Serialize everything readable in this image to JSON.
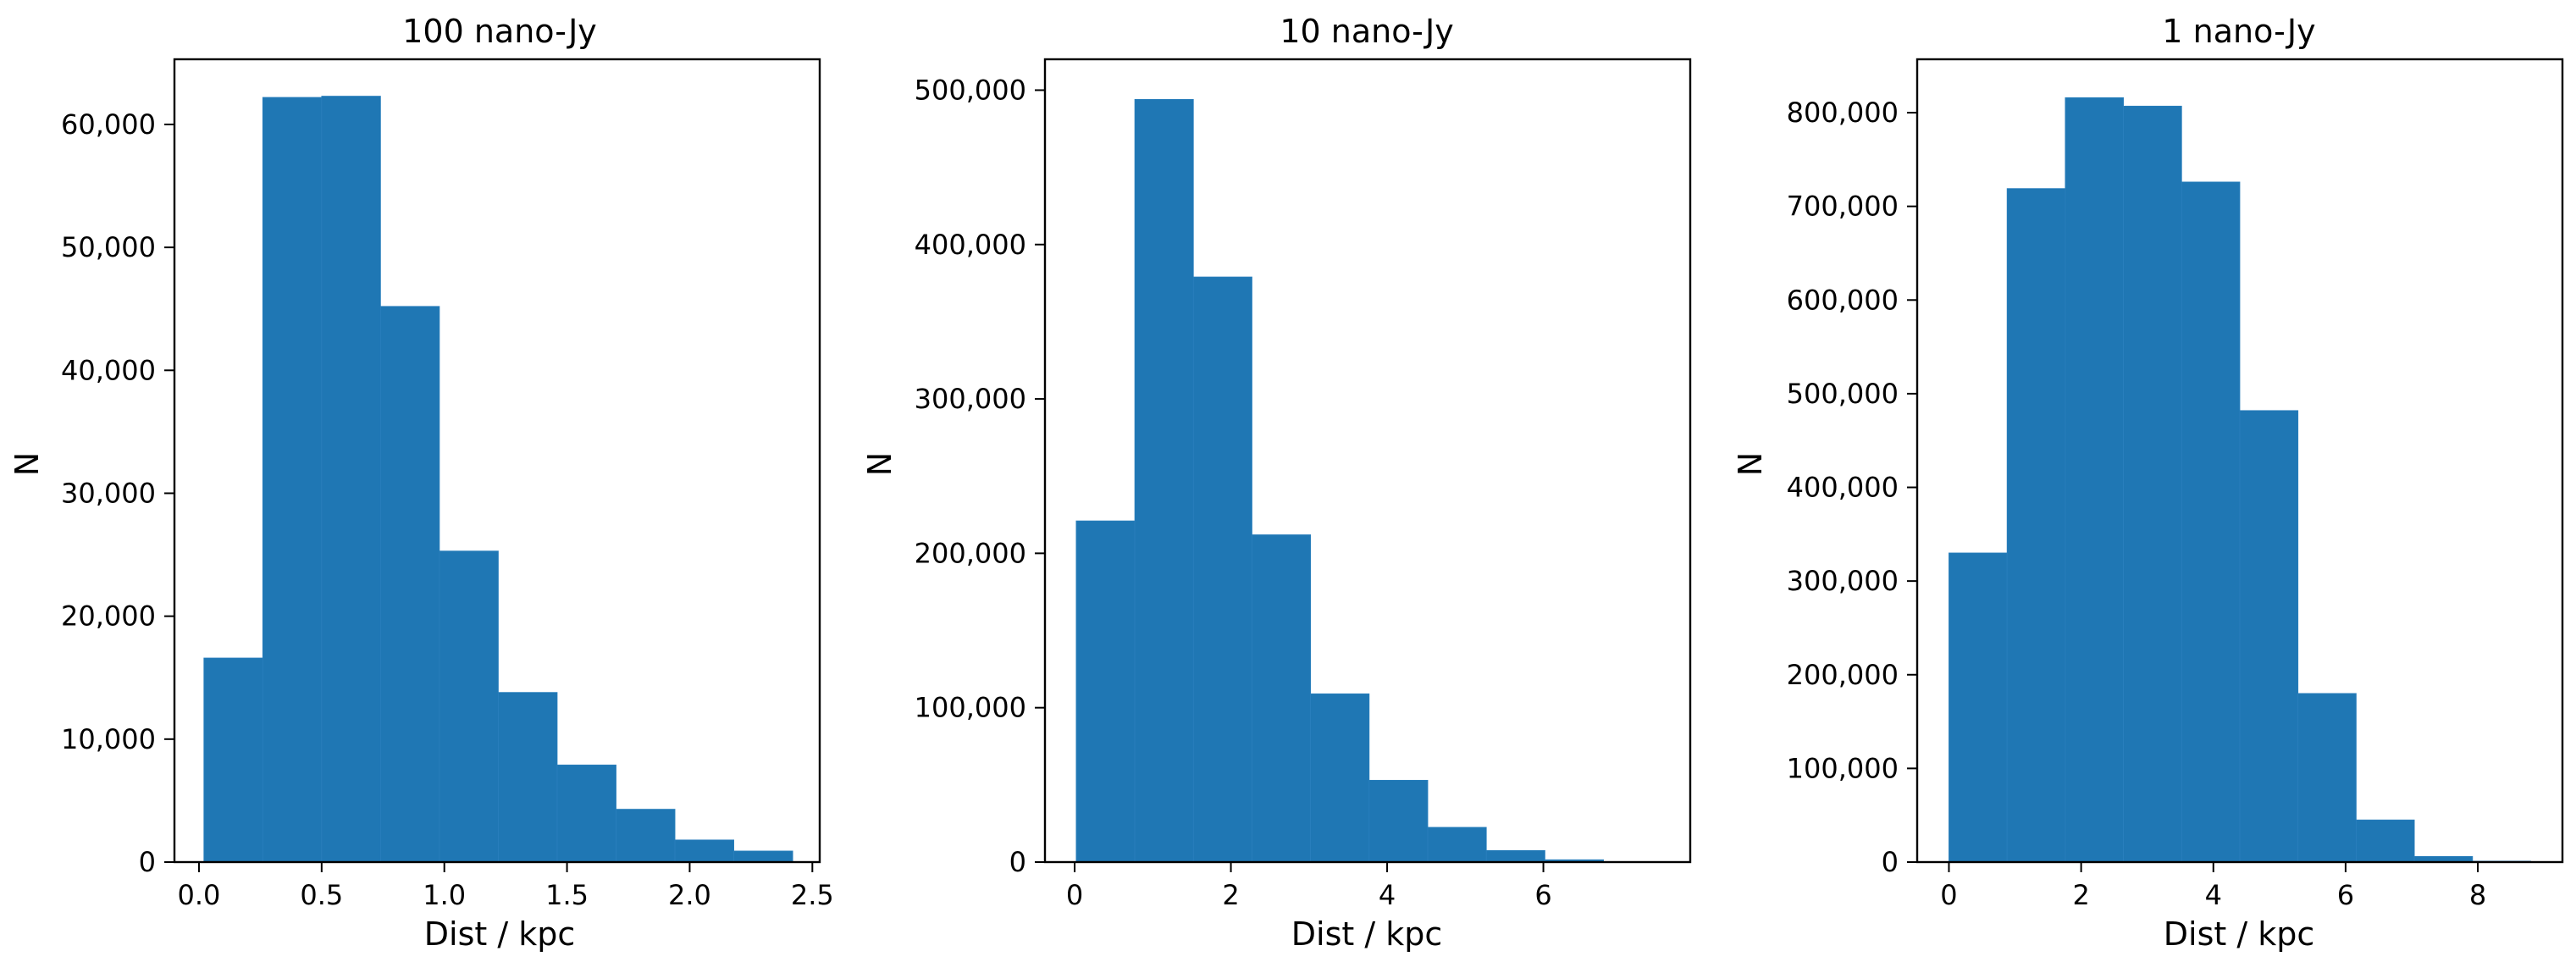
{
  "figure": {
    "background": "#ffffff",
    "bar_color": "#1f77b4"
  },
  "chart_data": [
    {
      "type": "bar",
      "title": "100 nano-Jy",
      "xlabel": "Dist / kpc",
      "ylabel": "N",
      "xlim": [
        -0.1,
        2.53
      ],
      "ylim": [
        0,
        65300
      ],
      "bin_edges": [
        0.02,
        0.26,
        0.5,
        0.74,
        0.98,
        1.22,
        1.46,
        1.7,
        1.94,
        2.18,
        2.42
      ],
      "values": [
        16600,
        62200,
        62300,
        45200,
        25300,
        13800,
        7900,
        4300,
        1800,
        900
      ],
      "xticks": [
        0.0,
        0.5,
        1.0,
        1.5,
        2.0,
        2.5
      ],
      "xtick_labels": [
        "0.0",
        "0.5",
        "1.0",
        "1.5",
        "2.0",
        "2.5"
      ],
      "yticks": [
        0,
        10000,
        20000,
        30000,
        40000,
        50000,
        60000
      ],
      "ytick_labels": [
        "0",
        "10,000",
        "20,000",
        "30,000",
        "40,000",
        "50,000",
        "60,000"
      ],
      "grid": false,
      "legend": "none"
    },
    {
      "type": "bar",
      "title": "10 nano-Jy",
      "xlabel": "Dist / kpc",
      "ylabel": "N",
      "xlim": [
        -0.38,
        7.88
      ],
      "ylim": [
        0,
        520000
      ],
      "bin_edges": [
        0.02,
        0.77,
        1.52,
        2.27,
        3.02,
        3.77,
        4.52,
        5.27,
        6.02,
        6.77,
        7.52
      ],
      "values": [
        221000,
        494000,
        379000,
        212000,
        109000,
        53000,
        22500,
        7500,
        1500,
        300
      ],
      "xticks": [
        0,
        2,
        4,
        6
      ],
      "xtick_labels": [
        "0",
        "2",
        "4",
        "6"
      ],
      "yticks": [
        0,
        100000,
        200000,
        300000,
        400000,
        500000
      ],
      "ytick_labels": [
        "0",
        "100,000",
        "200,000",
        "300,000",
        "400,000",
        "500,000"
      ],
      "grid": false,
      "legend": "none"
    },
    {
      "type": "bar",
      "title": "1 nano-Jy",
      "xlabel": "Dist / kpc",
      "ylabel": "N",
      "xlim": [
        -0.48,
        9.28
      ],
      "ylim": [
        0,
        857000
      ],
      "bin_edges": [
        0.0,
        0.88,
        1.76,
        2.64,
        3.52,
        4.4,
        5.28,
        6.16,
        7.04,
        7.92,
        8.8
      ],
      "values": [
        330000,
        719000,
        816000,
        807000,
        726000,
        482000,
        180000,
        45000,
        6000,
        1000
      ],
      "xticks": [
        0,
        2,
        4,
        6,
        8
      ],
      "xtick_labels": [
        "0",
        "2",
        "4",
        "6",
        "8"
      ],
      "yticks": [
        0,
        100000,
        200000,
        300000,
        400000,
        500000,
        600000,
        700000,
        800000
      ],
      "ytick_labels": [
        "0",
        "100,000",
        "200,000",
        "300,000",
        "400,000",
        "500,000",
        "600,000",
        "700,000",
        "800,000"
      ],
      "grid": false,
      "legend": "none"
    }
  ]
}
